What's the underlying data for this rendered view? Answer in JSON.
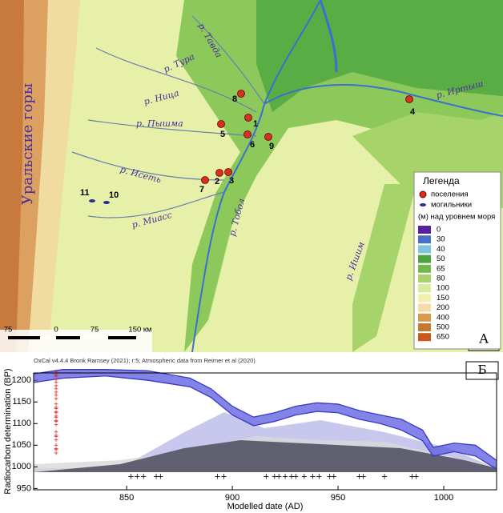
{
  "map": {
    "mountains": "Уральские горы",
    "rivers": [
      "р. Тавда",
      "р. Тура",
      "р. Ница",
      "р. Пышма",
      "р. Исеть",
      "р. Миасс",
      "р. Тобол",
      "р. Ишим",
      "р. Иртыш"
    ],
    "sites": [
      "1",
      "2",
      "3",
      "4",
      "5",
      "6",
      "7",
      "8",
      "9",
      "10",
      "11"
    ],
    "legend": {
      "title": "Легенда",
      "settlements": "поселения",
      "burials": "могильники",
      "elevation_title": "(м) над уровнем моря",
      "levels": [
        {
          "label": "0",
          "color": "#5a1f9a"
        },
        {
          "label": "30",
          "color": "#4a6fc4"
        },
        {
          "label": "40",
          "color": "#7ec4dc"
        },
        {
          "label": "50",
          "color": "#4ca43c"
        },
        {
          "label": "65",
          "color": "#72b84a"
        },
        {
          "label": "80",
          "color": "#a6d46a"
        },
        {
          "label": "100",
          "color": "#d8ec9e"
        },
        {
          "label": "150",
          "color": "#f2f0b0"
        },
        {
          "label": "200",
          "color": "#f4dca4"
        },
        {
          "label": "400",
          "color": "#d89a4c"
        },
        {
          "label": "500",
          "color": "#c47a34"
        },
        {
          "label": "650",
          "color": "#c85a1c"
        }
      ]
    },
    "scale": [
      "75",
      "0",
      "75",
      "150 км"
    ],
    "panel": "А"
  },
  "chart_data": {
    "type": "band",
    "header": "OxCal v4.4.4 Bronk Ramsey (2021); r:5; Atmospheric data from Reimer et al (2020)",
    "panel": "Б",
    "x_label": "Modelled date (AD)",
    "y_label": "Radiocarbon determination (BP)",
    "xlim": [
      806,
      1025
    ],
    "ylim": [
      947,
      1217
    ],
    "xticks": [
      850,
      900,
      950,
      1000
    ],
    "yticks": [
      950,
      1000,
      1050,
      1100,
      1150,
      1200
    ],
    "x": [
      806,
      820,
      840,
      860,
      880,
      890,
      900,
      910,
      920,
      930,
      940,
      950,
      960,
      970,
      980,
      990,
      995,
      1005,
      1015,
      1025
    ],
    "series": [
      {
        "name": "upper",
        "color": "#3a3ac8",
        "values": [
          1215,
          1225,
          1225,
          1222,
          1205,
          1180,
          1140,
          1115,
          1125,
          1140,
          1148,
          1145,
          1130,
          1120,
          1110,
          1085,
          1045,
          1055,
          1050,
          1015
        ]
      },
      {
        "name": "lower",
        "color": "#3a3ac8",
        "values": [
          1195,
          1205,
          1210,
          1200,
          1185,
          1160,
          1120,
          1095,
          1105,
          1120,
          1128,
          1125,
          1110,
          1100,
          1085,
          1060,
          1025,
          1035,
          1025,
          995
        ]
      }
    ],
    "measurements": [
      1215,
      1205,
      1190,
      1175,
      1160,
      1140,
      1130,
      1120,
      1110,
      1100,
      1075,
      1065,
      1045,
      1035
    ],
    "modelled_dates": [
      852,
      855,
      858,
      864,
      866,
      893,
      896,
      916,
      920,
      922,
      925,
      928,
      930,
      934,
      938,
      941,
      946,
      948,
      960,
      962,
      972,
      985,
      987
    ]
  }
}
